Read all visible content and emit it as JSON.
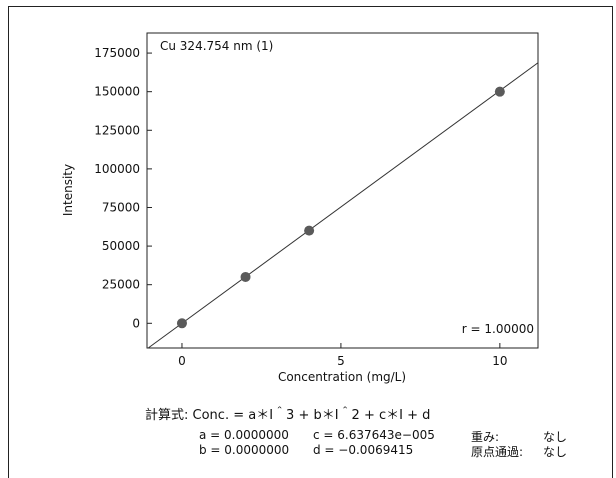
{
  "chart_data": {
    "type": "scatter",
    "title": "Cu 324.754 nm (1)",
    "xlabel": "Concentration (mg/L)",
    "ylabel": "Intensity",
    "xlim": [
      -1.1,
      11.2
    ],
    "ylim": [
      -16000,
      188000
    ],
    "xticks": [
      0,
      5,
      10
    ],
    "yticks": [
      0,
      25000,
      50000,
      75000,
      100000,
      125000,
      150000,
      175000
    ],
    "points": [
      {
        "x": 0,
        "y": 0
      },
      {
        "x": 2,
        "y": 30000
      },
      {
        "x": 4,
        "y": 60000
      },
      {
        "x": 10,
        "y": 150000
      }
    ],
    "fit_line": {
      "type": "linear",
      "slope": 15065,
      "intercept": 0
    },
    "r_label": "r = 1.00000"
  },
  "formula": {
    "label": "計算式:",
    "expression": "Conc. = a＊I＾3 + b＊I＾2 + c＊I + d"
  },
  "coefficients": {
    "a": "a = 0.0000000",
    "b": "b = 0.0000000",
    "c": "c = 6.637643e−005",
    "d": "d = −0.0069415"
  },
  "options": {
    "weight_label": "重み:",
    "weight_value": "なし",
    "origin_label": "原点通過:",
    "origin_value": "なし"
  },
  "colors": {
    "marker": "#5a5a5a",
    "line": "#333333"
  }
}
